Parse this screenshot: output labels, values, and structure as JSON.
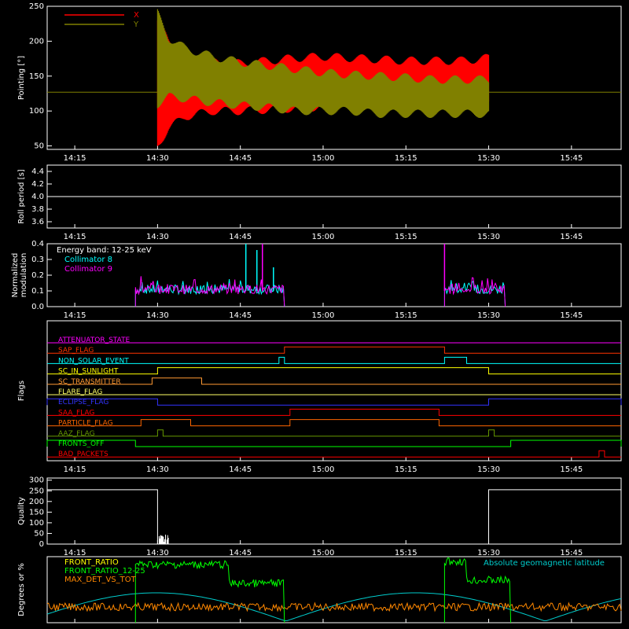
{
  "chart_data": [
    {
      "type": "line",
      "panel": "pointing",
      "ylabel": "Pointing [°]",
      "ylim": [
        45,
        250
      ],
      "yticks": [
        50,
        100,
        150,
        200,
        250
      ],
      "xticks": [
        "14:15",
        "14:30",
        "14:45",
        "15:00",
        "15:15",
        "15:30",
        "15:45"
      ],
      "x_range": [
        "14:10",
        "15:54"
      ],
      "grid": false,
      "legend_position": "top-left",
      "baseline_value": 127,
      "series": [
        {
          "name": "X",
          "color": "#ff0000",
          "x": [
            "14:30",
            "14:32",
            "14:35",
            "14:40",
            "14:45",
            "14:50",
            "14:55",
            "15:00",
            "15:05",
            "15:10",
            "15:15",
            "15:20",
            "15:25",
            "15:30"
          ],
          "upper": [
            230,
            200,
            180,
            170,
            168,
            172,
            176,
            178,
            176,
            174,
            172,
            172,
            172,
            176
          ],
          "lower": [
            50,
            75,
            92,
            100,
            100,
            102,
            104,
            106,
            110,
            112,
            114,
            116,
            118,
            118
          ]
        },
        {
          "name": "Y",
          "color": "#808000",
          "x": [
            "14:30",
            "14:32",
            "14:35",
            "14:40",
            "14:45",
            "14:50",
            "14:55",
            "15:00",
            "15:05",
            "15:10",
            "15:15",
            "15:20",
            "15:25",
            "15:30"
          ],
          "upper": [
            240,
            205,
            190,
            178,
            170,
            165,
            160,
            155,
            152,
            150,
            148,
            145,
            145,
            145
          ],
          "lower": [
            110,
            120,
            118,
            112,
            108,
            105,
            100,
            100,
            100,
            96,
            96,
            96,
            96,
            96
          ]
        }
      ]
    },
    {
      "type": "line",
      "panel": "roll",
      "ylabel": "Roll period [s]",
      "ylim": [
        3.5,
        4.5
      ],
      "yticks": [
        "3.6",
        "3.8",
        "4.0",
        "4.2",
        "4.4"
      ],
      "xticks": [
        "14:15",
        "14:30",
        "14:45",
        "15:00",
        "15:15",
        "15:30",
        "15:45"
      ],
      "series": [
        {
          "x": [
            "14:10",
            "15:54"
          ],
          "y": [
            4.0,
            4.0
          ],
          "color": "#ffffff"
        }
      ]
    },
    {
      "type": "line",
      "panel": "modulation",
      "ylabel": "Normalized modulation",
      "ylim": [
        0,
        0.4
      ],
      "yticks": [
        "0.0",
        "0.1",
        "0.2",
        "0.3",
        "0.4"
      ],
      "annotation": "Energy band: 12-25 keV",
      "legend_position": "top-left",
      "series": [
        {
          "name": "Collimator 8",
          "color": "#00ffff",
          "segments": [
            {
              "start": "14:26",
              "end": "14:53",
              "level": 0.1
            },
            {
              "start": "15:22",
              "end": "15:33",
              "level": 0.1
            }
          ],
          "spikes": [
            {
              "x": "14:46",
              "y": 0.4
            },
            {
              "x": "14:48",
              "y": 0.36
            },
            {
              "x": "14:51",
              "y": 0.25
            }
          ]
        },
        {
          "name": "Collimator 9",
          "color": "#ff00ff",
          "segments": [
            {
              "start": "14:26",
              "end": "14:53",
              "level": 0.1
            },
            {
              "start": "15:22",
              "end": "15:33",
              "level": 0.1
            }
          ],
          "spikes": [
            {
              "x": "14:49",
              "y": 0.4
            },
            {
              "x": "15:22",
              "y": 0.4
            }
          ]
        }
      ]
    },
    {
      "type": "line",
      "panel": "flags",
      "ylabel": "Flags",
      "series": [
        {
          "name": "ATTENUATOR_STATE",
          "color": "#ff00ff",
          "steps": []
        },
        {
          "name": "SAP_FLAG",
          "color": "#ff3300",
          "steps": [
            [
              "14:53",
              "15:22"
            ]
          ]
        },
        {
          "name": "NON_SOLAR_EVENT",
          "color": "#00ffff",
          "steps": [
            [
              "14:52",
              "14:53"
            ],
            [
              "15:22",
              "15:26"
            ]
          ]
        },
        {
          "name": "SC_IN_SUNLIGHT",
          "color": "#ffff00",
          "steps": [
            [
              "14:30",
              "15:30"
            ]
          ]
        },
        {
          "name": "SC_TRANSMITTER",
          "color": "#ff9933",
          "steps": [
            [
              "14:29",
              "14:38"
            ]
          ]
        },
        {
          "name": "FLARE_FLAG",
          "color": "#ffff66",
          "steps": []
        },
        {
          "name": "ECLIPSE_FLAG",
          "color": "#3333ff",
          "steps": [
            [
              "14:10",
              "14:30"
            ],
            [
              "15:30",
              "15:54"
            ]
          ]
        },
        {
          "name": "SAA_FLAG",
          "color": "#ff0000",
          "steps": [
            [
              "14:54",
              "15:21"
            ]
          ]
        },
        {
          "name": "PARTICLE_FLAG",
          "color": "#ff6600",
          "steps": [
            [
              "14:27",
              "14:36"
            ],
            [
              "14:54",
              "15:21"
            ]
          ]
        },
        {
          "name": "AAZ_FLAG",
          "color": "#669900",
          "steps": [
            [
              "14:30",
              "14:31"
            ],
            [
              "15:30",
              "15:31"
            ]
          ]
        },
        {
          "name": "FRONTS_OFF",
          "color": "#00ff00",
          "steps": [
            [
              "14:10",
              "14:26"
            ],
            [
              "15:34",
              "15:54"
            ]
          ]
        },
        {
          "name": "BAD_PACKETS",
          "color": "#ff0000",
          "steps": [
            [
              "15:50",
              "15:51"
            ]
          ]
        }
      ]
    },
    {
      "type": "line",
      "panel": "quality",
      "ylabel": "Quality",
      "ylim": [
        0,
        310
      ],
      "yticks": [
        "0",
        "50",
        "100",
        "150",
        "200",
        "250",
        "300"
      ],
      "xticks": [
        "14:15",
        "14:30",
        "14:45",
        "15:00",
        "15:15",
        "15:30",
        "15:45"
      ],
      "series": [
        {
          "color": "#ffffff",
          "x": [
            "14:10",
            "14:30",
            "14:30",
            "15:30",
            "15:30",
            "15:54"
          ],
          "y": [
            255,
            255,
            0,
            0,
            255,
            255
          ]
        }
      ]
    },
    {
      "type": "line",
      "panel": "geomagnetic",
      "ylabel": "Degrees or %",
      "legend_position": "top-left",
      "annotation": "Absolute geomagnetic latitude",
      "series": [
        {
          "name": "FRONT_RATIO",
          "color": "#ffff00"
        },
        {
          "name": "FRONT_RATIO_12-25",
          "color": "#00ff00"
        },
        {
          "name": "MAX_DET_VS_TOT",
          "color": "#ff8800"
        },
        {
          "name": "Absolute geomagnetic latitude",
          "color": "#00cccc"
        }
      ]
    }
  ]
}
